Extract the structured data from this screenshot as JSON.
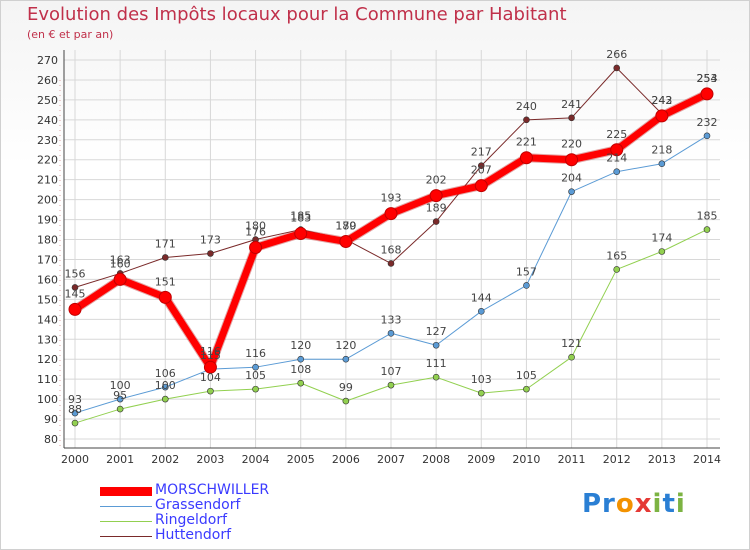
{
  "title": "Evolution des Impôts locaux pour la Commune par Habitant",
  "subtitle": "(en € et par an)",
  "logo": {
    "p1": "Pr",
    "o": "o",
    "x": "x",
    "i": "i",
    "t": "t",
    "i2": "i"
  },
  "chart_data": {
    "type": "line",
    "title": "Evolution des Impôts locaux pour la Commune par Habitant",
    "subtitle": "(en € et par an)",
    "xlabel": "",
    "ylabel": "",
    "categories": [
      "2000",
      "2001",
      "2002",
      "2003",
      "2004",
      "2005",
      "2006",
      "2007",
      "2008",
      "2009",
      "2010",
      "2011",
      "2012",
      "2013",
      "2014"
    ],
    "yticks": [
      80,
      90,
      100,
      110,
      120,
      130,
      140,
      150,
      160,
      170,
      180,
      190,
      200,
      210,
      220,
      230,
      240,
      250,
      260,
      270
    ],
    "ylim": [
      80,
      270
    ],
    "grid": true,
    "legend_position": "bottom-left",
    "series": [
      {
        "name": "Huttendorf",
        "color": "#7a2a2a",
        "width": 1,
        "marker": 3,
        "values": [
          156,
          163,
          171,
          173,
          180,
          185,
          180,
          168,
          189,
          217,
          240,
          241,
          266,
          243,
          254
        ]
      },
      {
        "name": "Grassendorf",
        "color": "#5b9bd5",
        "width": 1,
        "marker": 3,
        "values": [
          93,
          100,
          106,
          115,
          116,
          120,
          120,
          133,
          127,
          144,
          157,
          204,
          214,
          218,
          232
        ]
      },
      {
        "name": "Ringeldorf",
        "color": "#92d050",
        "width": 1,
        "marker": 3,
        "values": [
          88,
          95,
          100,
          104,
          105,
          108,
          99,
          107,
          111,
          103,
          105,
          121,
          165,
          174,
          185
        ]
      },
      {
        "name": "MORSCHWILLER",
        "color": "#ff0000",
        "width": 7,
        "marker": 6,
        "values": [
          145,
          160,
          151,
          116,
          176,
          183,
          179,
          193,
          202,
          207,
          221,
          220,
          225,
          242,
          253
        ]
      }
    ]
  },
  "legend": [
    {
      "name": "MORSCHWILLER",
      "color": "#ff0000",
      "text_color": "#3a3aff",
      "thickness": 9
    },
    {
      "name": "Grassendorf",
      "color": "#5b9bd5",
      "text_color": "#3a3aff",
      "thickness": 1
    },
    {
      "name": "Ringeldorf",
      "color": "#92d050",
      "text_color": "#3a3aff",
      "thickness": 1
    },
    {
      "name": "Huttendorf",
      "color": "#7a2a2a",
      "text_color": "#3a3aff",
      "thickness": 1
    }
  ]
}
